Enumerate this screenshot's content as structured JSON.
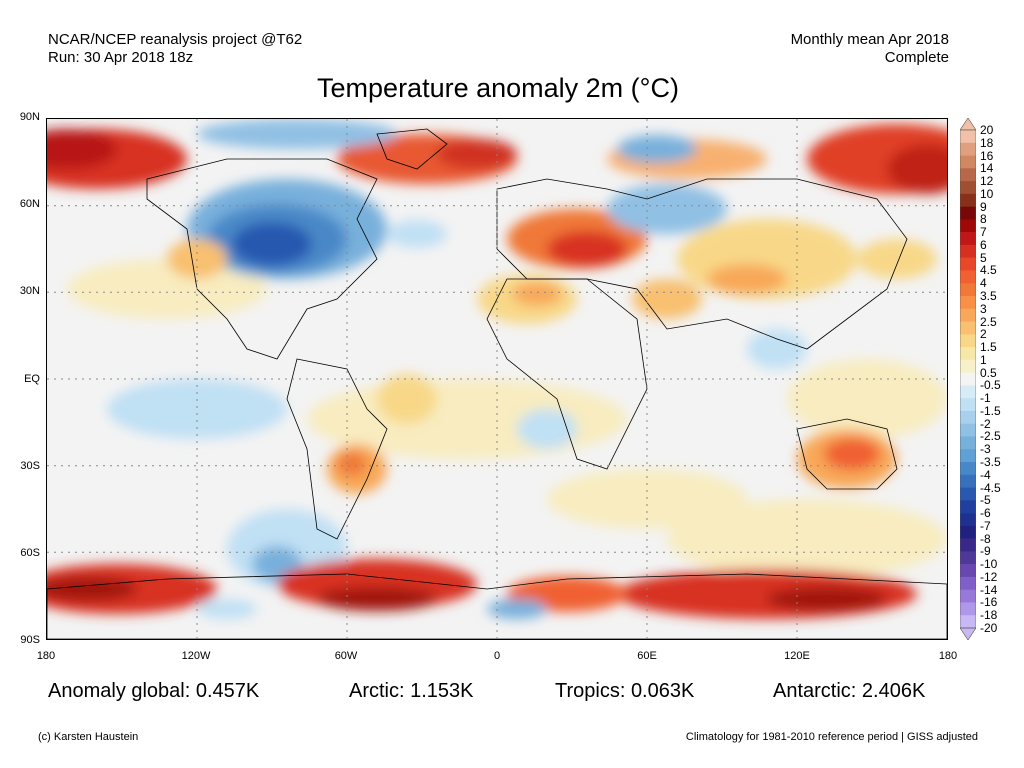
{
  "header": {
    "project": "NCAR/NCEP reanalysis project @T62",
    "run": "Run: 30 Apr 2018 18z",
    "period": "Monthly mean Apr 2018",
    "status": "Complete"
  },
  "title": "Temperature anomaly 2m (°C)",
  "map": {
    "lat_labels": [
      "90N",
      "60N",
      "30N",
      "EQ",
      "30S",
      "60S",
      "90S"
    ],
    "lon_labels": [
      "180",
      "120W",
      "60W",
      "0",
      "60E",
      "120E",
      "180"
    ],
    "lat_range": [
      -90,
      90
    ],
    "lon_range": [
      -180,
      180
    ],
    "grid": "dotted, every 30 degrees",
    "ocean_color": "#f2f2f2"
  },
  "colorbar": {
    "labels": [
      "20",
      "18",
      "16",
      "14",
      "12",
      "10",
      "9",
      "8",
      "7",
      "6",
      "5",
      "4.5",
      "4",
      "3.5",
      "3",
      "2.5",
      "2",
      "1.5",
      "1",
      "0.5",
      "-0.5",
      "-1",
      "-1.5",
      "-2",
      "-2.5",
      "-3",
      "-3.5",
      "-4",
      "-4.5",
      "-5",
      "-6",
      "-7",
      "-8",
      "-9",
      "-10",
      "-12",
      "-14",
      "-16",
      "-18",
      "-20"
    ],
    "colors": [
      "#f0c0a8",
      "#e0a080",
      "#d08860",
      "#b86848",
      "#a05030",
      "#883018",
      "#780808",
      "#a00808",
      "#c01818",
      "#d83020",
      "#e84828",
      "#f06030",
      "#f07838",
      "#f89048",
      "#f8a858",
      "#f8c070",
      "#f8d888",
      "#f8e8a8",
      "#f8f0c8",
      "#f4f4f4",
      "#d8ecf8",
      "#c0e0f4",
      "#a8d0ec",
      "#90c0e4",
      "#78b0dc",
      "#60a0d4",
      "#4888c8",
      "#3870bc",
      "#2858b0",
      "#2040a0",
      "#203090",
      "#202080",
      "#382888",
      "#503898",
      "#6848b0",
      "#8060c8",
      "#9878d8",
      "#b098e8",
      "#c8b8f4"
    ]
  },
  "stats": {
    "global": "Anomaly global: 0.457K",
    "arctic": "Arctic: 1.153K",
    "tropics": "Tropics: 0.063K",
    "antarctic": "Antarctic: 2.406K"
  },
  "footer": {
    "copyright": "(c) Karsten Haustein",
    "climatology": "Climatology for 1981-2010 reference period | GISS adjusted"
  }
}
